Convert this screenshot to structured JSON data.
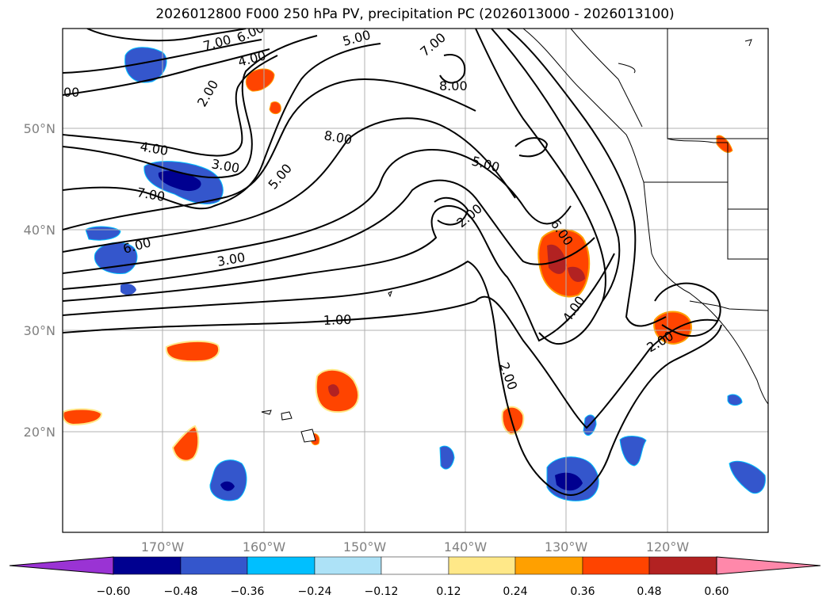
{
  "title": "2026012800 F000 250 hPa PV, precipitation PC (2026013000 - 2026013100)",
  "colors": {
    "land_border": "#000000",
    "grid": "#b0b0b0",
    "contour": "#000000",
    "axis_label": "#808080"
  },
  "map": {
    "lon_labels": [
      "170°W",
      "160°W",
      "150°W",
      "140°W",
      "130°W",
      "120°W"
    ],
    "lat_labels": [
      "50°N",
      "40°N",
      "30°N",
      "20°N"
    ],
    "contour_labels": [
      "7.00",
      "6.00",
      "4.00",
      "5.00",
      "7.00",
      "8.00",
      "2.00",
      "8.00",
      "4.00",
      "3.00",
      "5.00",
      "7.00",
      "5.00",
      "2.00",
      "6.00",
      "6.00",
      "3.00",
      "1.00",
      "2.00",
      "4.00",
      "2.00",
      "00"
    ],
    "precip_features": [
      {
        "name": "blob-n-pacific-high",
        "category": "negative"
      },
      {
        "name": "blob-aleutian-neg-1",
        "category": "negative"
      },
      {
        "name": "blob-aleutian-neg-2",
        "category": "negative"
      },
      {
        "name": "blob-w-pacific-neg",
        "category": "negative"
      },
      {
        "name": "blob-central-pos",
        "category": "positive"
      },
      {
        "name": "blob-california-coast",
        "category": "positive"
      },
      {
        "name": "blob-baja-offshore",
        "category": "positive"
      },
      {
        "name": "blob-hawaii-ne",
        "category": "positive"
      },
      {
        "name": "blob-subtropic-neg",
        "category": "negative"
      }
    ]
  },
  "colorbar": {
    "ticks": [
      "−0.60",
      "−0.48",
      "−0.36",
      "−0.24",
      "−0.12",
      "0.12",
      "0.24",
      "0.36",
      "0.48",
      "0.60"
    ],
    "bins": [
      {
        "color": "#9a33d4"
      },
      {
        "color": "#000090"
      },
      {
        "color": "#3456cc"
      },
      {
        "color": "#00bfff"
      },
      {
        "color": "#ade2f7"
      },
      {
        "color": "#ffffff"
      },
      {
        "color": "#ffe888"
      },
      {
        "color": "#ffa000"
      },
      {
        "color": "#ff4400"
      },
      {
        "color": "#b22222"
      },
      {
        "color": "#ff88aa"
      }
    ]
  }
}
